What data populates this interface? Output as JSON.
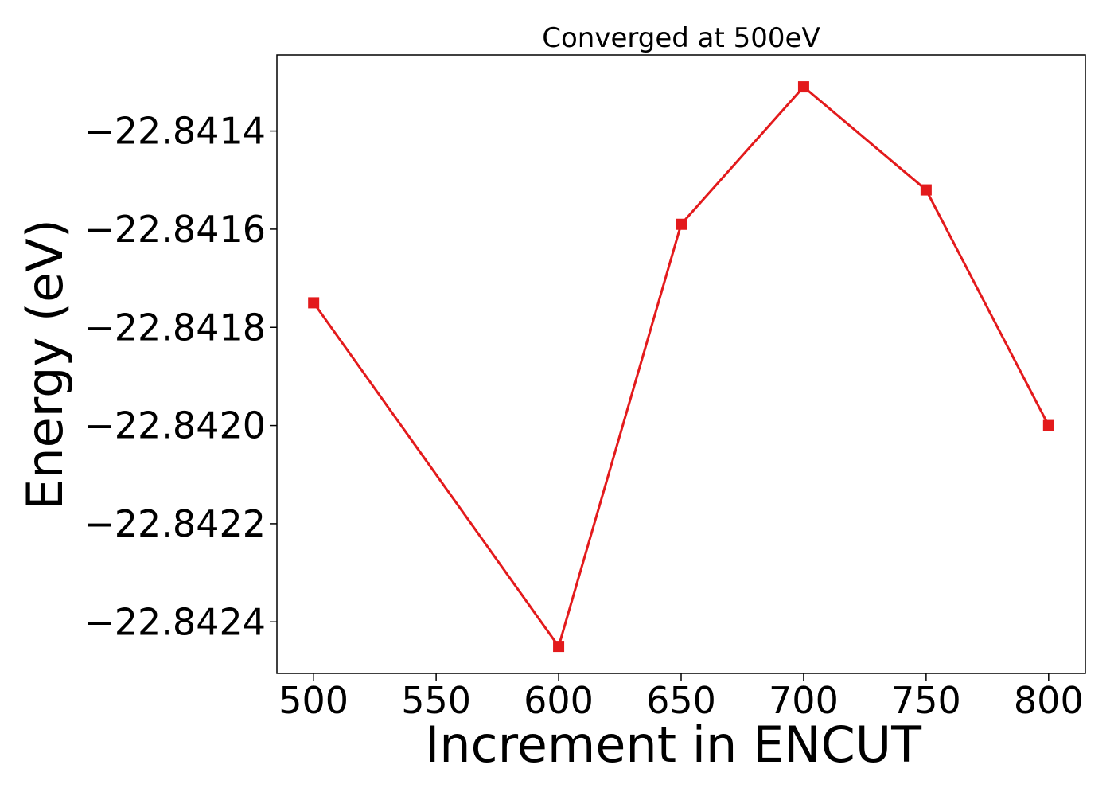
{
  "chart_data": {
    "type": "line",
    "title": "Converged at 500eV",
    "xlabel": "Increment in ENCUT",
    "ylabel": "Energy (eV)",
    "x": [
      500,
      600,
      650,
      700,
      750,
      800
    ],
    "series": [
      {
        "values": [
          -22.84175,
          -22.84245,
          -22.84159,
          -22.84131,
          -22.84152,
          -22.842
        ],
        "color": "#e31a1c",
        "marker": "square"
      }
    ],
    "xticks": [
      500,
      550,
      600,
      650,
      700,
      750,
      800
    ],
    "xtick_labels": [
      "500",
      "550",
      "600",
      "650",
      "700",
      "750",
      "800"
    ],
    "yticks": [
      -22.8414,
      -22.8416,
      -22.8418,
      -22.842,
      -22.8422,
      -22.8424
    ],
    "ytick_labels": [
      "−22.8414",
      "−22.8416",
      "−22.8418",
      "−22.8420",
      "−22.8422",
      "−22.8424"
    ],
    "xlim": [
      485,
      815
    ],
    "ylim": [
      -22.842505,
      -22.841245
    ],
    "grid": false,
    "legend": "none"
  }
}
